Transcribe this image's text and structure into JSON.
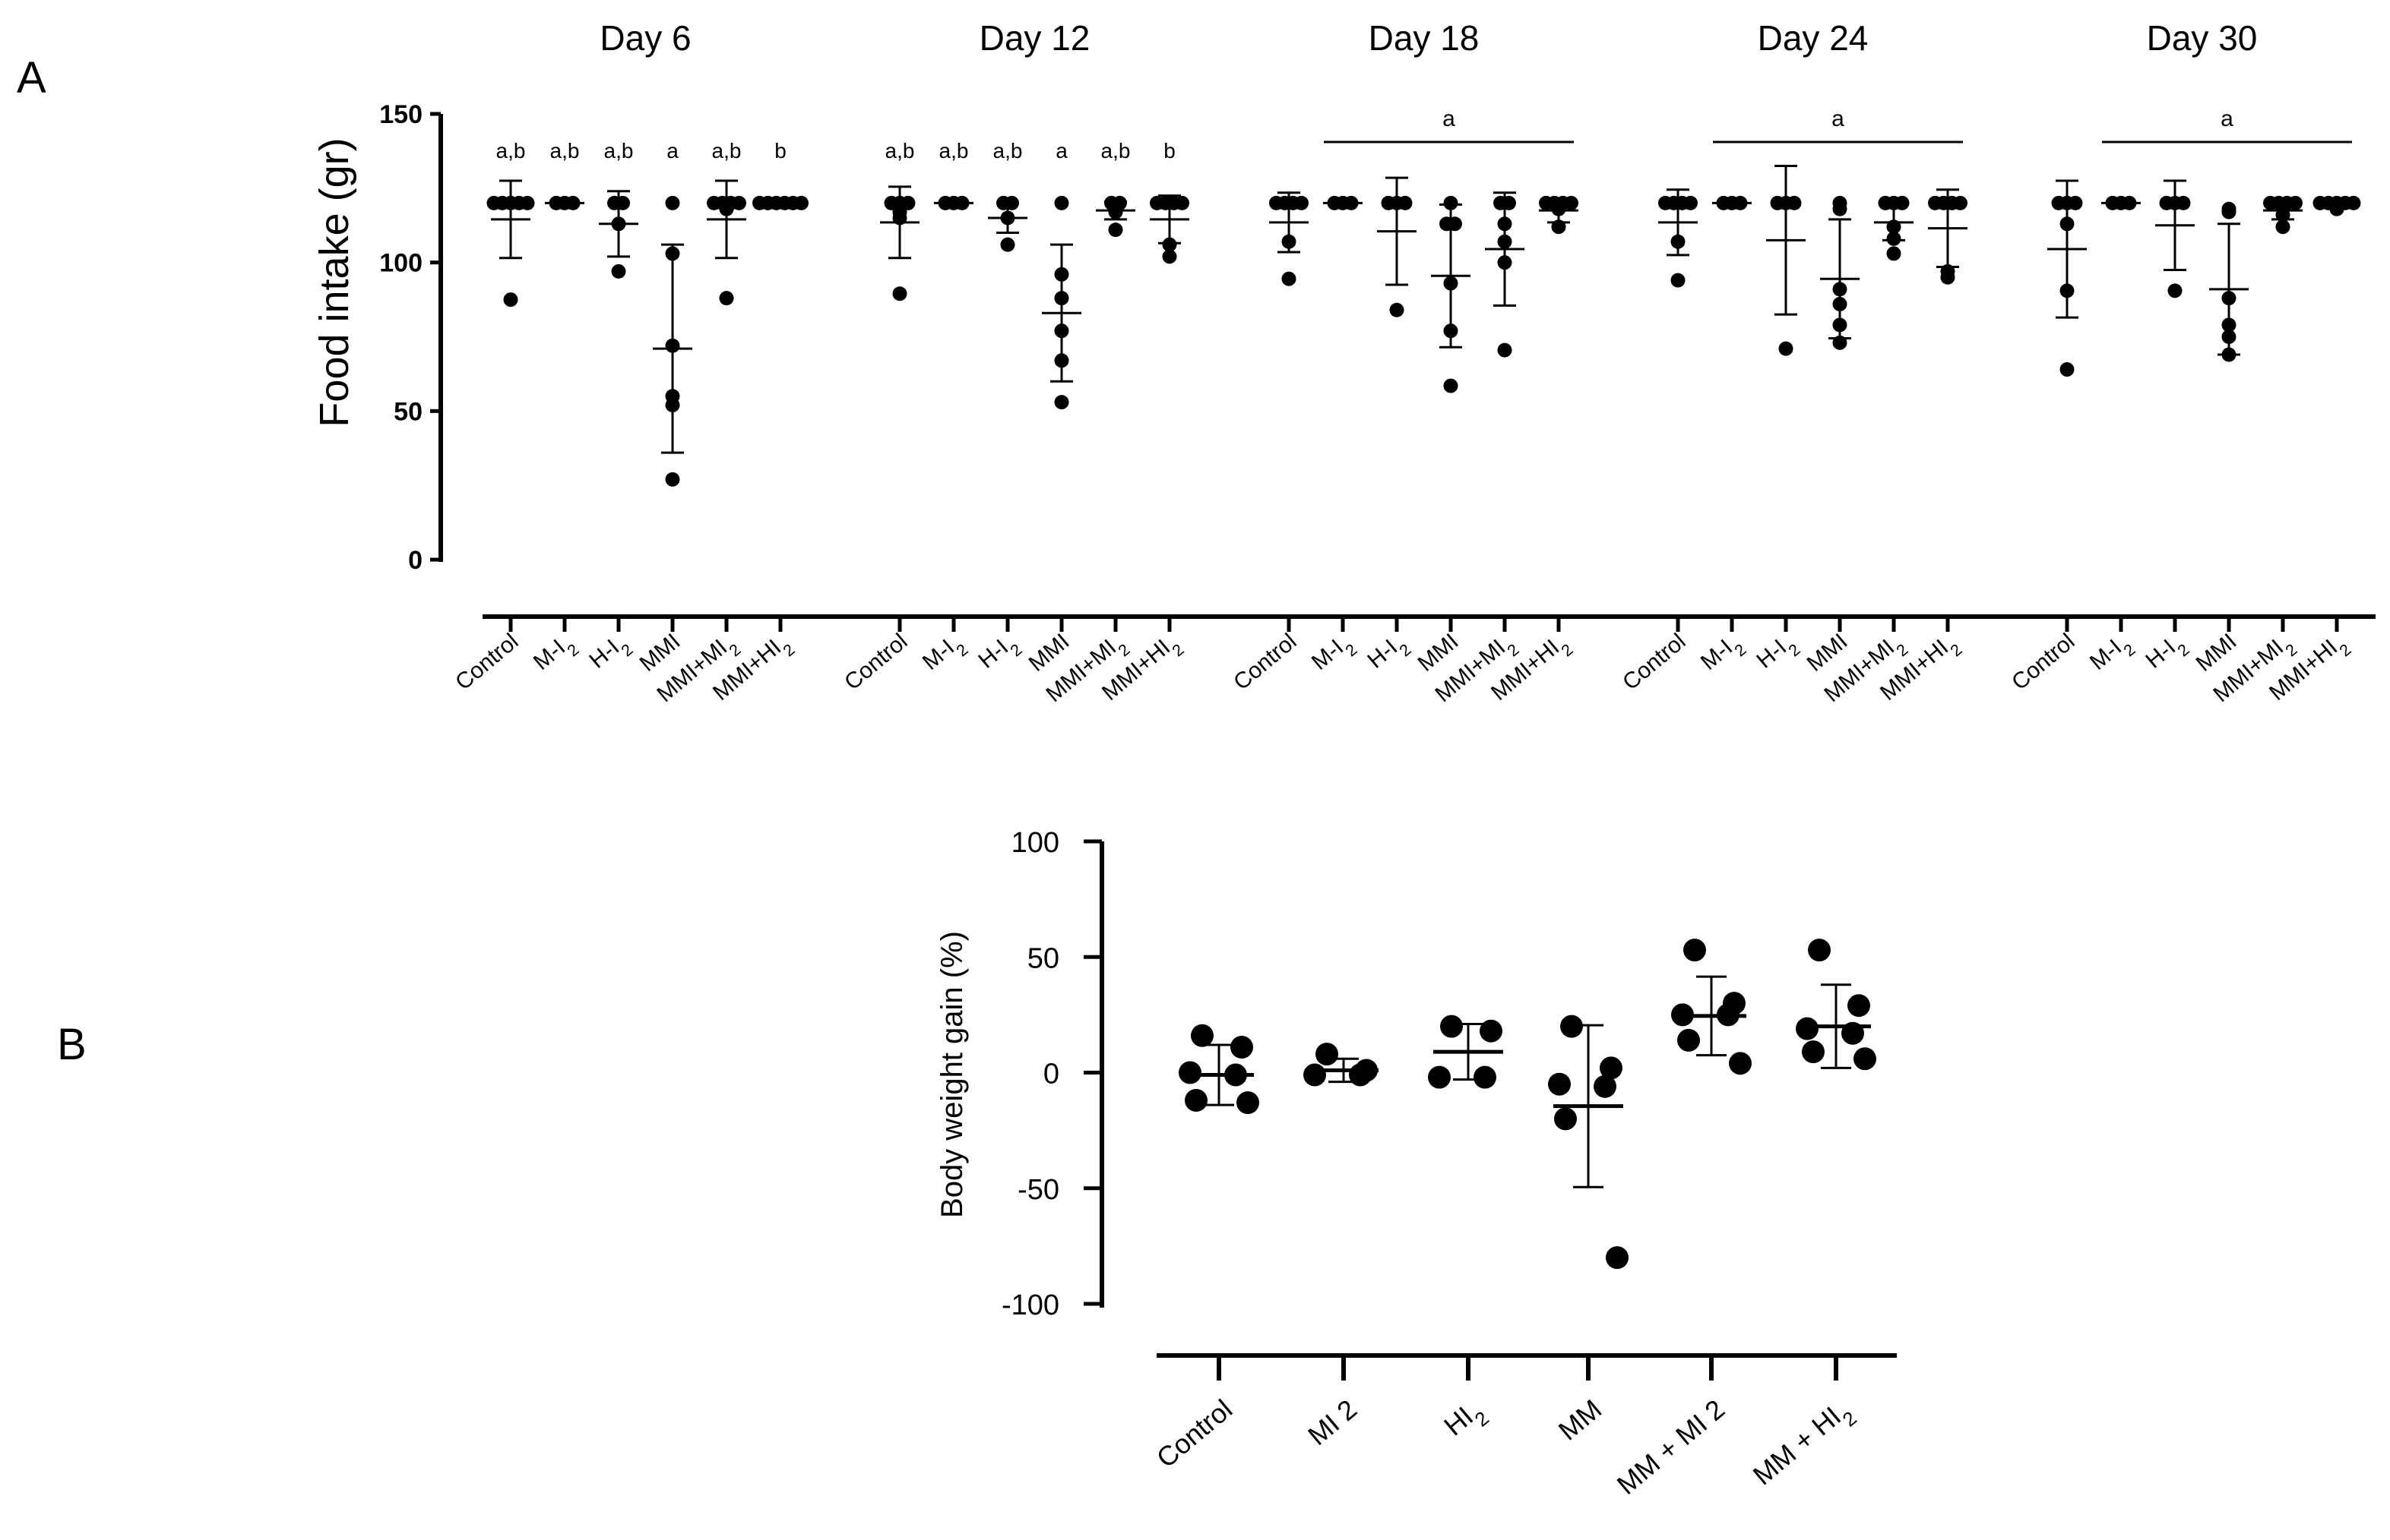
{
  "chart_data": [
    {
      "panel": "A",
      "type": "scatter",
      "ylabel": "Food intake (gr)",
      "ylim": [
        0,
        150
      ],
      "yticks": [
        "0",
        "50",
        "100",
        "150"
      ],
      "groups": [
        "Control",
        "M-I2",
        "H-I2",
        "MMI",
        "MMI+MI2",
        "MMI+HI2"
      ],
      "days": [
        {
          "label": "Day  6",
          "letters": [
            "a,b",
            "a,b",
            "a,b",
            "a",
            "a,b",
            "b"
          ],
          "bracket_label": "",
          "series": [
            {
              "mean": 114.5,
              "sd": 13,
              "points": [
                120,
                120,
                120,
                120,
                120,
                87.5
              ]
            },
            {
              "mean": 120,
              "sd": 0,
              "points": [
                120,
                120,
                120
              ]
            },
            {
              "mean": 113,
              "sd": 11,
              "points": [
                120,
                120,
                113,
                97
              ]
            },
            {
              "mean": 71,
              "sd": 35,
              "points": [
                120,
                103,
                72,
                55,
                52,
                27
              ]
            },
            {
              "mean": 114.5,
              "sd": 13,
              "points": [
                120,
                120,
                120,
                120,
                118,
                88
              ]
            },
            {
              "mean": 120,
              "sd": 0,
              "points": [
                120,
                120,
                120,
                120,
                120,
                120
              ]
            }
          ]
        },
        {
          "label": "Day 12",
          "letters": [
            "a,b",
            "a,b",
            "a,b",
            "a",
            "a,b",
            "b"
          ],
          "bracket_label": "",
          "series": [
            {
              "mean": 113.5,
              "sd": 12,
              "points": [
                120,
                120,
                120,
                117,
                115,
                89.5
              ]
            },
            {
              "mean": 120,
              "sd": 0,
              "points": [
                120,
                120,
                120
              ]
            },
            {
              "mean": 115,
              "sd": 5,
              "points": [
                120,
                120,
                115,
                106
              ]
            },
            {
              "mean": 83,
              "sd": 23,
              "points": [
                120,
                96,
                88,
                77,
                67,
                53
              ]
            },
            {
              "mean": 117.5,
              "sd": 3,
              "points": [
                120,
                120,
                119,
                118,
                117,
                111
              ]
            },
            {
              "mean": 114.5,
              "sd": 8,
              "points": [
                120,
                120,
                120,
                120,
                106,
                102
              ]
            }
          ]
        },
        {
          "label": "Day  18",
          "letters": [],
          "bracket_label": "a",
          "series": [
            {
              "mean": 113.5,
              "sd": 10,
              "points": [
                120,
                120,
                120,
                120,
                107,
                94.5
              ]
            },
            {
              "mean": 120,
              "sd": 0,
              "points": [
                120,
                120,
                120
              ]
            },
            {
              "mean": 110.5,
              "sd": 18,
              "points": [
                120,
                120,
                120,
                84
              ]
            },
            {
              "mean": 95.5,
              "sd": 24,
              "points": [
                120,
                113,
                113,
                93,
                77,
                58.5
              ]
            },
            {
              "mean": 104.5,
              "sd": 19,
              "points": [
                120,
                120,
                113,
                107,
                100,
                70.5
              ]
            },
            {
              "mean": 117.5,
              "sd": 4,
              "points": [
                120,
                120,
                120,
                120,
                118,
                112
              ]
            }
          ]
        },
        {
          "label": "Day  24",
          "letters": [],
          "bracket_label": "a",
          "series": [
            {
              "mean": 113.5,
              "sd": 11,
              "points": [
                120,
                120,
                120,
                120,
                107,
                94
              ]
            },
            {
              "mean": 120,
              "sd": 0,
              "points": [
                120,
                120,
                120
              ]
            },
            {
              "mean": 107.5,
              "sd": 25,
              "points": [
                120,
                120,
                120,
                71
              ]
            },
            {
              "mean": 94.5,
              "sd": 20,
              "points": [
                120,
                118,
                91,
                86,
                79,
                73
              ]
            },
            {
              "mean": 113.5,
              "sd": 6,
              "points": [
                120,
                120,
                120,
                112,
                108,
                103
              ]
            },
            {
              "mean": 111.5,
              "sd": 13,
              "points": [
                120,
                120,
                120,
                120,
                97,
                95
              ]
            }
          ]
        },
        {
          "label": "Day  30",
          "letters": [],
          "bracket_label": "a",
          "series": [
            {
              "mean": 104.5,
              "sd": 23,
              "points": [
                120,
                120,
                120,
                113,
                90.5,
                64
              ]
            },
            {
              "mean": 120,
              "sd": 0,
              "points": [
                120,
                120,
                120
              ]
            },
            {
              "mean": 112.5,
              "sd": 15,
              "points": [
                120,
                120,
                120,
                90.5
              ]
            },
            {
              "mean": 91,
              "sd": 22,
              "points": [
                118,
                117,
                88,
                79,
                75,
                69
              ]
            },
            {
              "mean": 117.5,
              "sd": 3,
              "points": [
                120,
                120,
                120,
                120,
                116,
                112
              ]
            },
            {
              "mean": 120,
              "sd": 1,
              "points": [
                120,
                120,
                120,
                120,
                120,
                118
              ]
            }
          ]
        }
      ]
    },
    {
      "panel": "B",
      "type": "scatter",
      "ylabel": "Body weight gain (%)",
      "ylim": [
        -100,
        100
      ],
      "yticks": [
        "-100",
        "-50",
        "0",
        "50",
        "100"
      ],
      "categories": [
        "Control",
        "MI 2",
        "HI2",
        "MM",
        "MM  + MI 2",
        "MM  + HI2"
      ],
      "series": [
        {
          "mean": -1,
          "sd": 13,
          "points": [
            16,
            11,
            0,
            -1,
            -12,
            -13
          ]
        },
        {
          "mean": 1,
          "sd": 5,
          "points": [
            8,
            1,
            -1,
            -1
          ]
        },
        {
          "mean": 9,
          "sd": 12,
          "points": [
            20,
            18,
            -2,
            -2
          ]
        },
        {
          "mean": -14.5,
          "sd": 35,
          "points": [
            20,
            2,
            -5,
            -6,
            -20,
            -80
          ]
        },
        {
          "mean": 24.5,
          "sd": 17,
          "points": [
            53,
            30,
            25,
            25,
            14,
            4
          ]
        },
        {
          "mean": 20,
          "sd": 18,
          "points": [
            53,
            29,
            19,
            17,
            9,
            6
          ]
        }
      ]
    }
  ],
  "panel_labels": {
    "a": "A",
    "b": "B"
  }
}
